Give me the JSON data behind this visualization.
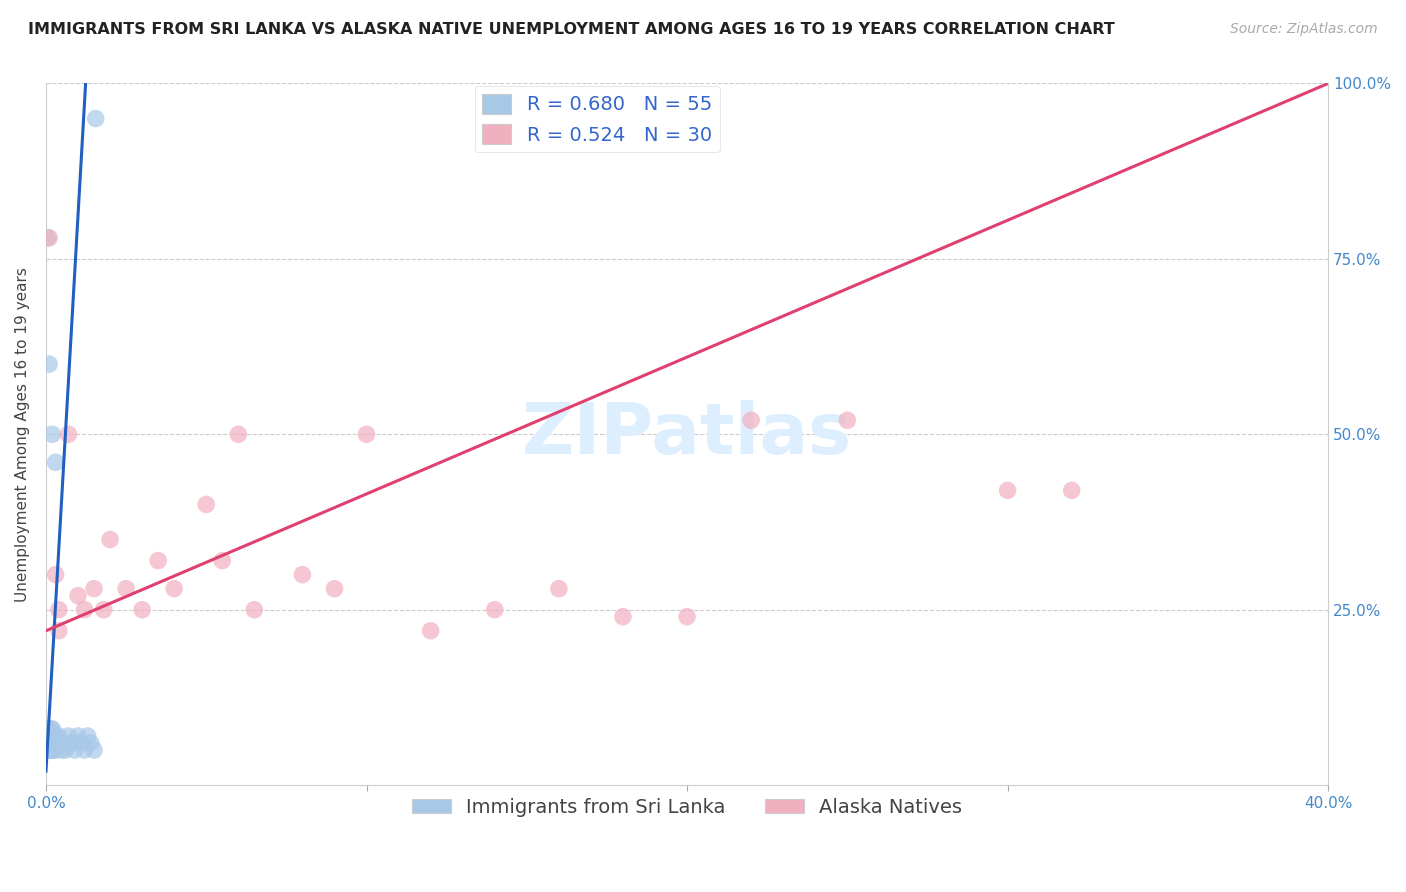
{
  "title": "IMMIGRANTS FROM SRI LANKA VS ALASKA NATIVE UNEMPLOYMENT AMONG AGES 16 TO 19 YEARS CORRELATION CHART",
  "source": "Source: ZipAtlas.com",
  "xlabel_bottom": [
    "Immigrants from Sri Lanka",
    "Alaska Natives"
  ],
  "ylabel": "Unemployment Among Ages 16 to 19 years",
  "xlim": [
    0.0,
    0.4
  ],
  "ylim": [
    0.0,
    1.0
  ],
  "xtick_labels": [
    "0.0%",
    "",
    "",
    "",
    "40.0%"
  ],
  "xtick_vals": [
    0.0,
    0.1,
    0.2,
    0.3,
    0.4
  ],
  "ytick_labels_right": [
    "25.0%",
    "50.0%",
    "75.0%",
    "100.0%"
  ],
  "ytick_vals": [
    0.25,
    0.5,
    0.75,
    1.0
  ],
  "blue_R": 0.68,
  "blue_N": 55,
  "pink_R": 0.524,
  "pink_N": 30,
  "blue_color": "#a8c8e8",
  "pink_color": "#f0b0c0",
  "blue_line_color": "#2060c0",
  "pink_line_color": "#e04070",
  "watermark_color": "#ddeeff",
  "blue_scatter_x": [
    0.0002,
    0.0003,
    0.0004,
    0.0004,
    0.0005,
    0.0005,
    0.0006,
    0.0006,
    0.0007,
    0.0007,
    0.0008,
    0.0008,
    0.0009,
    0.0009,
    0.001,
    0.001,
    0.001,
    0.0012,
    0.0012,
    0.0013,
    0.0013,
    0.0014,
    0.0014,
    0.0015,
    0.0015,
    0.0016,
    0.0016,
    0.0017,
    0.0018,
    0.002,
    0.002,
    0.002,
    0.002,
    0.003,
    0.003,
    0.003,
    0.004,
    0.004,
    0.005,
    0.005,
    0.006,
    0.007,
    0.008,
    0.009,
    0.01,
    0.011,
    0.012,
    0.013,
    0.014,
    0.015,
    0.001,
    0.002,
    0.003,
    0.0155,
    0.0005
  ],
  "blue_scatter_y": [
    0.05,
    0.07,
    0.06,
    0.08,
    0.05,
    0.06,
    0.07,
    0.05,
    0.06,
    0.08,
    0.05,
    0.07,
    0.06,
    0.05,
    0.06,
    0.07,
    0.05,
    0.06,
    0.05,
    0.07,
    0.05,
    0.06,
    0.05,
    0.07,
    0.06,
    0.05,
    0.08,
    0.06,
    0.05,
    0.07,
    0.06,
    0.05,
    0.08,
    0.06,
    0.07,
    0.05,
    0.06,
    0.07,
    0.05,
    0.06,
    0.05,
    0.07,
    0.06,
    0.05,
    0.07,
    0.06,
    0.05,
    0.07,
    0.06,
    0.05,
    0.6,
    0.5,
    0.46,
    0.95,
    0.78
  ],
  "pink_scatter_x": [
    0.001,
    0.003,
    0.004,
    0.004,
    0.007,
    0.01,
    0.012,
    0.015,
    0.018,
    0.02,
    0.025,
    0.03,
    0.035,
    0.04,
    0.05,
    0.055,
    0.06,
    0.065,
    0.08,
    0.09,
    0.1,
    0.12,
    0.14,
    0.16,
    0.18,
    0.2,
    0.22,
    0.25,
    0.3,
    0.32
  ],
  "pink_scatter_y": [
    0.78,
    0.3,
    0.25,
    0.22,
    0.5,
    0.27,
    0.25,
    0.28,
    0.25,
    0.35,
    0.28,
    0.25,
    0.32,
    0.28,
    0.4,
    0.32,
    0.5,
    0.25,
    0.3,
    0.28,
    0.5,
    0.22,
    0.25,
    0.28,
    0.24,
    0.24,
    0.52,
    0.52,
    0.42,
    0.42
  ],
  "blue_line_x": [
    0.0,
    0.013
  ],
  "blue_line_y": [
    0.02,
    1.05
  ],
  "pink_line_x": [
    0.0,
    0.4
  ],
  "pink_line_y": [
    0.22,
    1.0
  ],
  "title_fontsize": 11.5,
  "source_fontsize": 10,
  "axis_label_fontsize": 11,
  "tick_fontsize": 11,
  "legend_fontsize": 14
}
